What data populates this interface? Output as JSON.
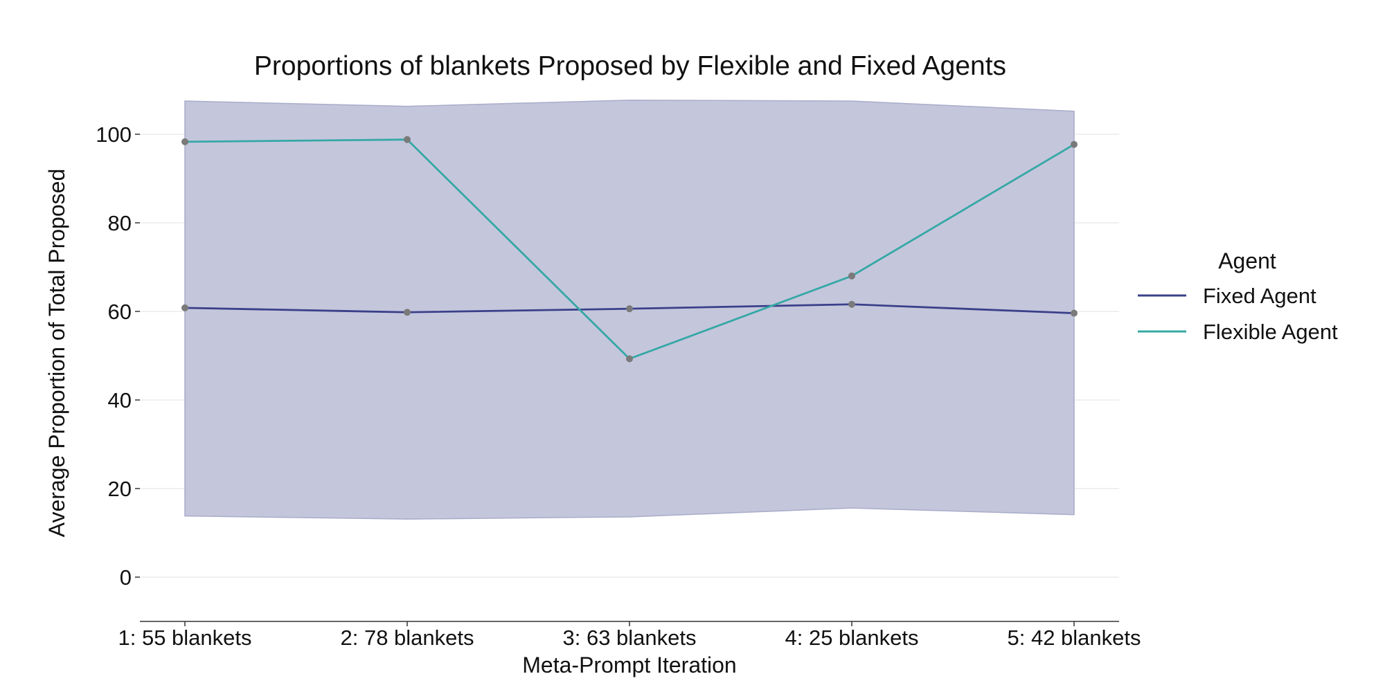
{
  "chart_data": {
    "type": "line",
    "title": "Proportions of blankets Proposed by Flexible and Fixed Agents",
    "xlabel": "Meta-Prompt Iteration",
    "ylabel": "Average Proportion of Total Proposed",
    "categories": [
      "1: 55 blankets",
      "2: 78 blankets",
      "3: 63 blankets",
      "4: 25 blankets",
      "5: 42 blankets"
    ],
    "ylim": [
      -10,
      110
    ],
    "yticks": [
      0,
      20,
      40,
      60,
      80,
      100
    ],
    "grid": true,
    "legend": {
      "title": "Agent",
      "placement": "right"
    },
    "band": {
      "upper": [
        107.5,
        106.3,
        107.7,
        107.5,
        105.2
      ],
      "lower": [
        13.8,
        13.1,
        13.6,
        15.6,
        14.1
      ],
      "color": "#c4c6dc"
    },
    "series": [
      {
        "name": "Fixed Agent",
        "values": [
          60.8,
          59.8,
          60.6,
          61.6,
          59.6
        ],
        "color": "#3a4089"
      },
      {
        "name": "Flexible Agent",
        "values": [
          98.3,
          98.8,
          49.3,
          68.0,
          97.7
        ],
        "color": "#35a8a5"
      }
    ],
    "marker_color": "#7a7a7a"
  }
}
